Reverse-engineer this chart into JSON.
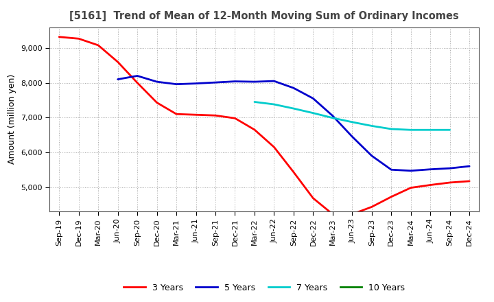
{
  "title": "[5161]  Trend of Mean of 12-Month Moving Sum of Ordinary Incomes",
  "ylabel": "Amount (million yen)",
  "x_labels": [
    "Sep-19",
    "Dec-19",
    "Mar-20",
    "Jun-20",
    "Sep-20",
    "Dec-20",
    "Mar-21",
    "Jun-21",
    "Sep-21",
    "Dec-21",
    "Mar-22",
    "Jun-22",
    "Sep-22",
    "Dec-22",
    "Mar-23",
    "Jun-23",
    "Sep-23",
    "Dec-23",
    "Mar-24",
    "Jun-24",
    "Sep-24",
    "Dec-24"
  ],
  "ylim": [
    4300,
    9600
  ],
  "yticks": [
    5000,
    6000,
    7000,
    8000,
    9000
  ],
  "series": {
    "3 Years": {
      "color": "#FF0000",
      "linewidth": 2.0,
      "data_x": [
        0,
        1,
        2,
        3,
        4,
        5,
        6,
        7,
        8,
        9,
        10,
        11,
        12,
        13,
        14,
        15,
        16,
        17,
        18,
        19,
        20,
        21
      ],
      "data_y": [
        9320,
        9270,
        9080,
        8600,
        8000,
        7430,
        7100,
        7080,
        7060,
        6980,
        6650,
        6150,
        5430,
        4680,
        4220,
        4220,
        4430,
        4720,
        4980,
        5060,
        5130,
        5170
      ]
    },
    "5 Years": {
      "color": "#0000CC",
      "linewidth": 2.0,
      "data_x": [
        3,
        4,
        5,
        6,
        7,
        8,
        9,
        10,
        11,
        12,
        13,
        14,
        15,
        16,
        17,
        18,
        19,
        20,
        21
      ],
      "data_y": [
        8100,
        8200,
        8030,
        7960,
        7980,
        8010,
        8040,
        8030,
        8050,
        7850,
        7550,
        7050,
        6450,
        5900,
        5500,
        5470,
        5510,
        5540,
        5600
      ]
    },
    "7 Years": {
      "color": "#00CCCC",
      "linewidth": 2.0,
      "data_x": [
        10,
        11,
        12,
        13,
        14,
        15,
        16,
        17,
        18,
        19,
        20
      ],
      "data_y": [
        7450,
        7380,
        7260,
        7130,
        6990,
        6870,
        6760,
        6670,
        6645,
        6645,
        6645
      ]
    },
    "10 Years": {
      "color": "#008000",
      "linewidth": 2.0,
      "data_x": [],
      "data_y": []
    }
  },
  "legend_entries": [
    "3 Years",
    "5 Years",
    "7 Years",
    "10 Years"
  ],
  "legend_colors": [
    "#FF0000",
    "#0000CC",
    "#00CCCC",
    "#008000"
  ],
  "background_color": "#FFFFFF",
  "plot_bg_color": "#FFFFFF",
  "grid_color": "#AAAAAA",
  "title_color": "#444444",
  "title_fontsize": 10.5,
  "ylabel_fontsize": 9,
  "tick_fontsize": 8
}
